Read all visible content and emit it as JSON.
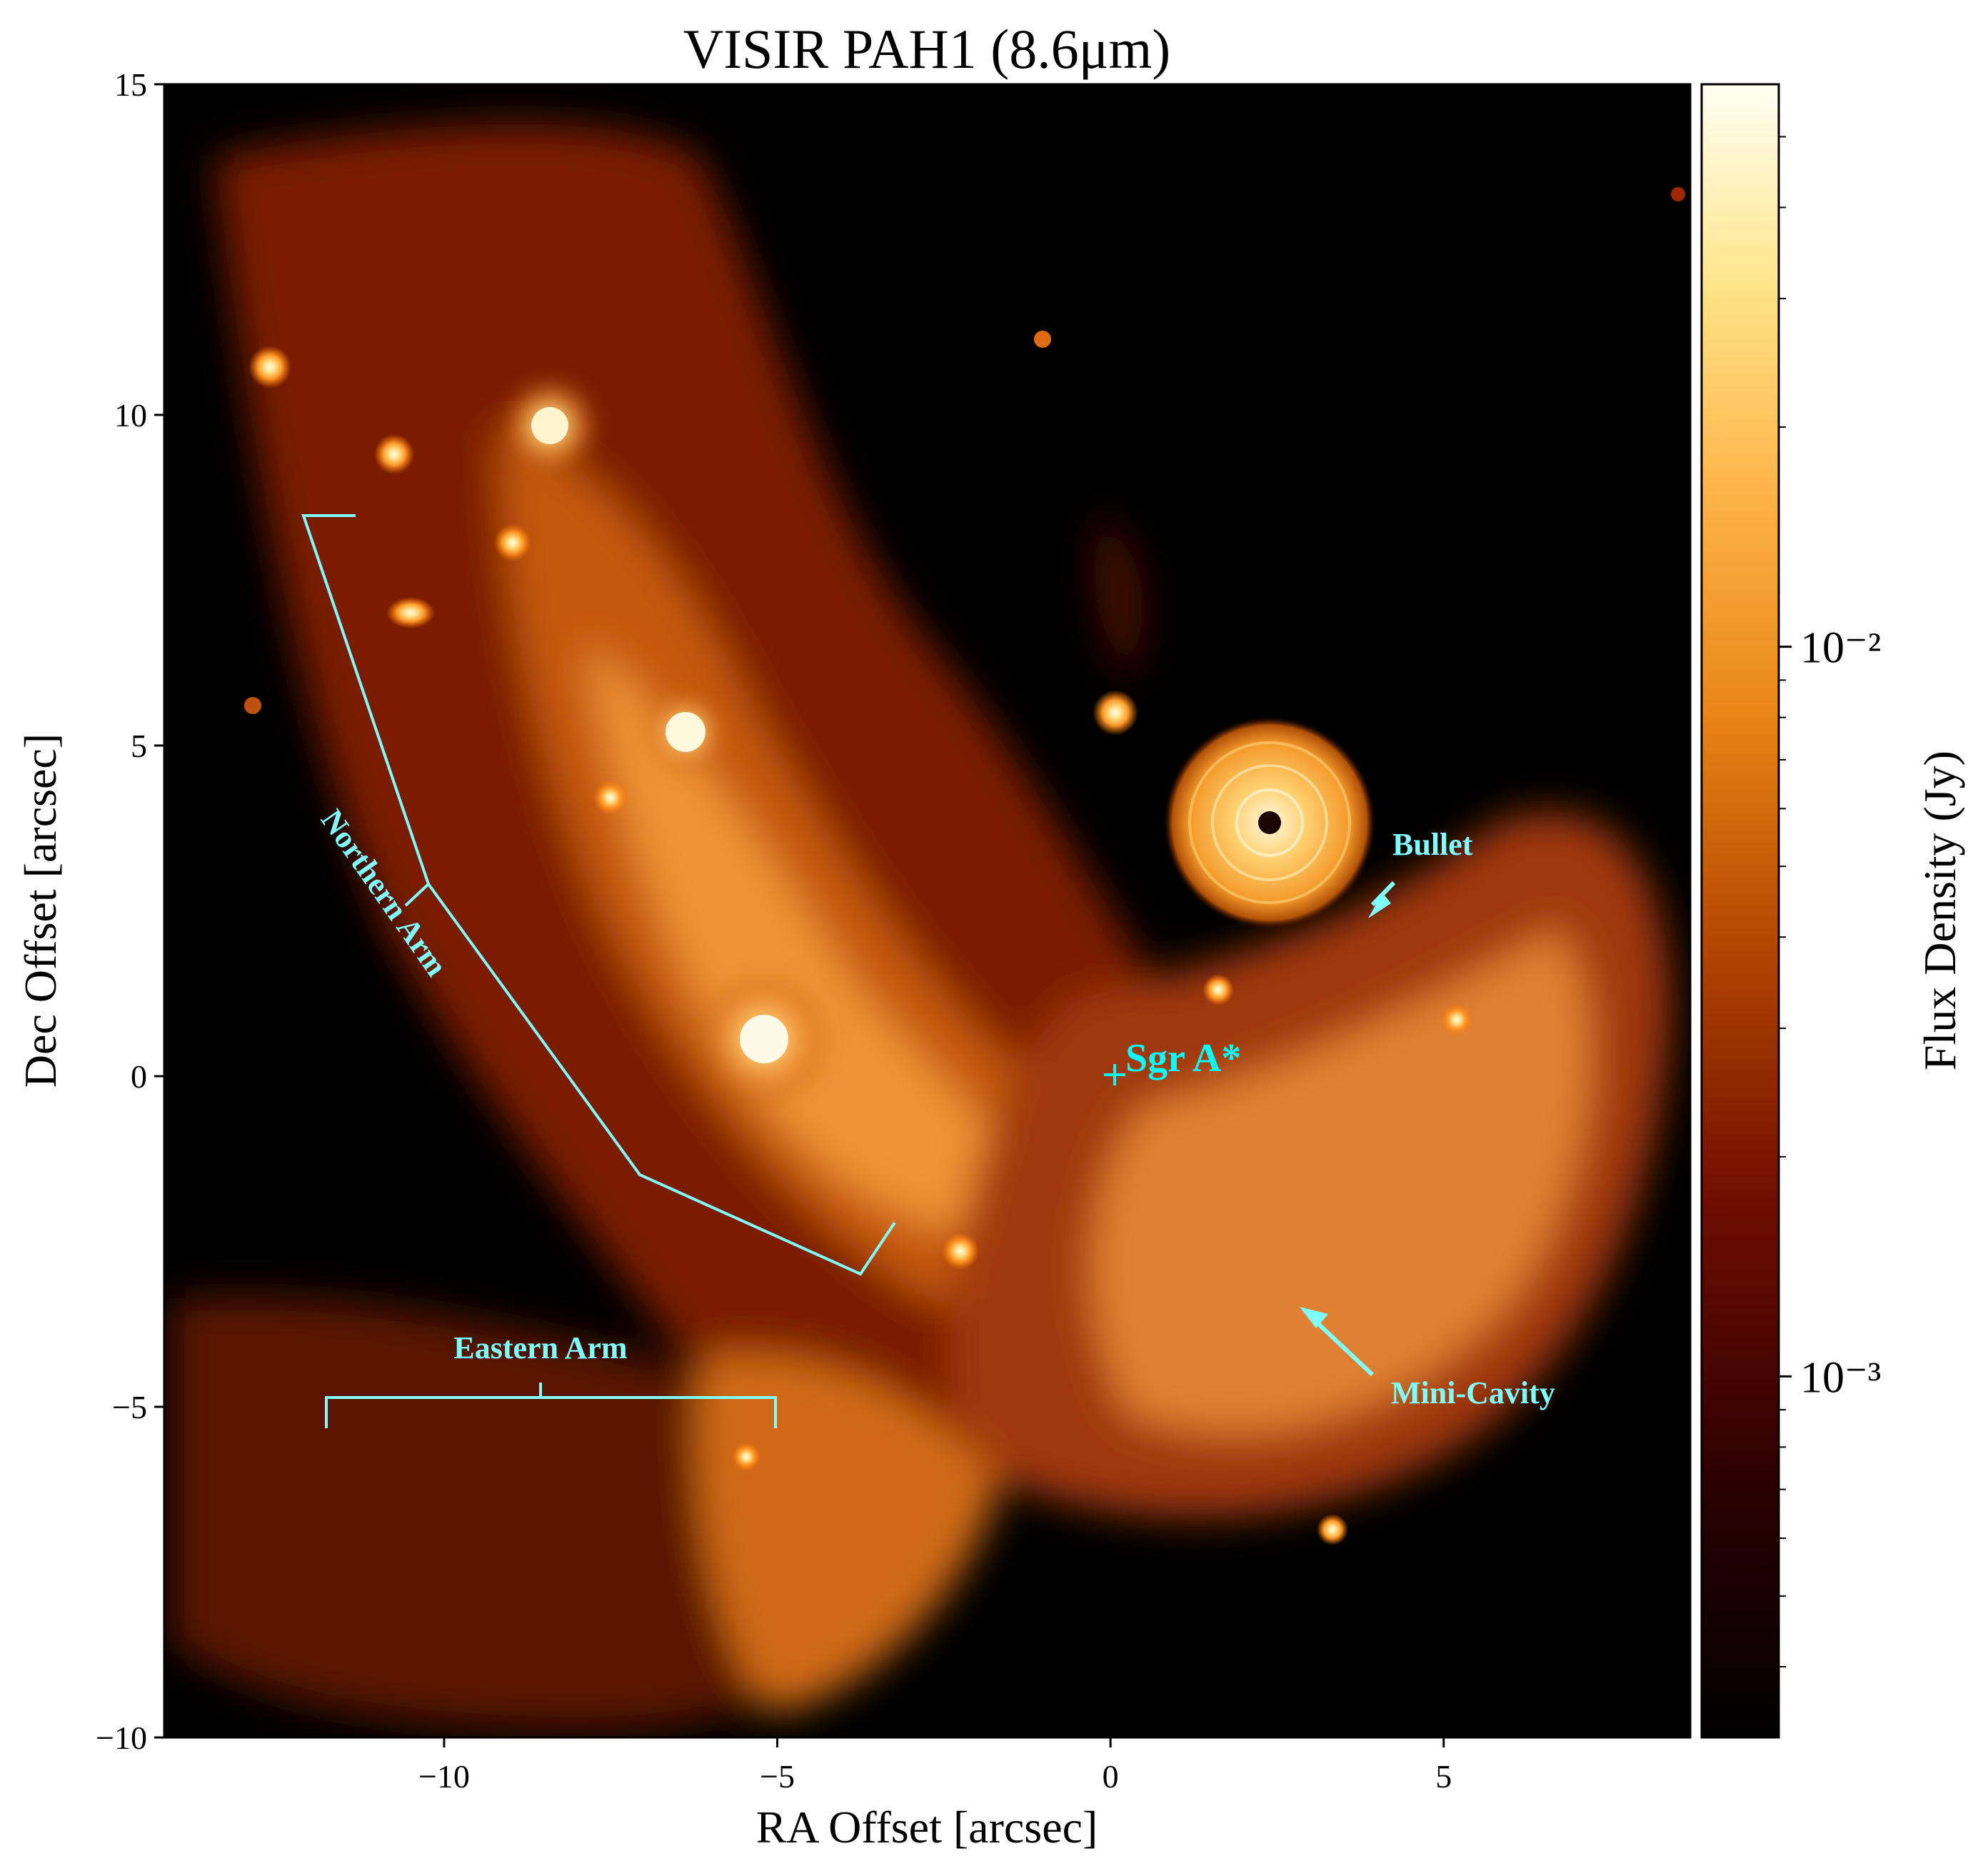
{
  "figure": {
    "title": "VISIR PAH1 (8.6μm)",
    "xlabel": "RA Offset  [arcsec]",
    "ylabel": "Dec Offset  [arcsec]",
    "colorbar_label": "Flux Density (Jy)",
    "colormap": "afmhot",
    "xlim": [
      -14.2,
      8.7
    ],
    "ylim": [
      -10,
      15
    ],
    "x_ticks": [
      -10,
      -5,
      0,
      5
    ],
    "x_tick_labels": [
      "−10",
      "−5",
      "0",
      "5"
    ],
    "y_ticks": [
      -10,
      -5,
      0,
      5,
      10,
      15
    ],
    "y_tick_labels": [
      "−10",
      "−5",
      "0",
      "5",
      "10",
      "15"
    ],
    "colorbar_scale": "log",
    "colorbar_range_jy": [
      0.00032,
      0.059
    ],
    "colorbar_major_ticks": [
      0.001,
      0.01
    ],
    "colorbar_major_tick_labels": [
      "10⁻³",
      "10⁻²"
    ],
    "annotation_color": "#7fffff"
  },
  "annotations": {
    "northern_arm": "Northern Arm",
    "eastern_arm": "Eastern Arm",
    "sgr_a": "Sgr A*",
    "bullet": "Bullet",
    "mini_cavity": "Mini-Cavity"
  }
}
